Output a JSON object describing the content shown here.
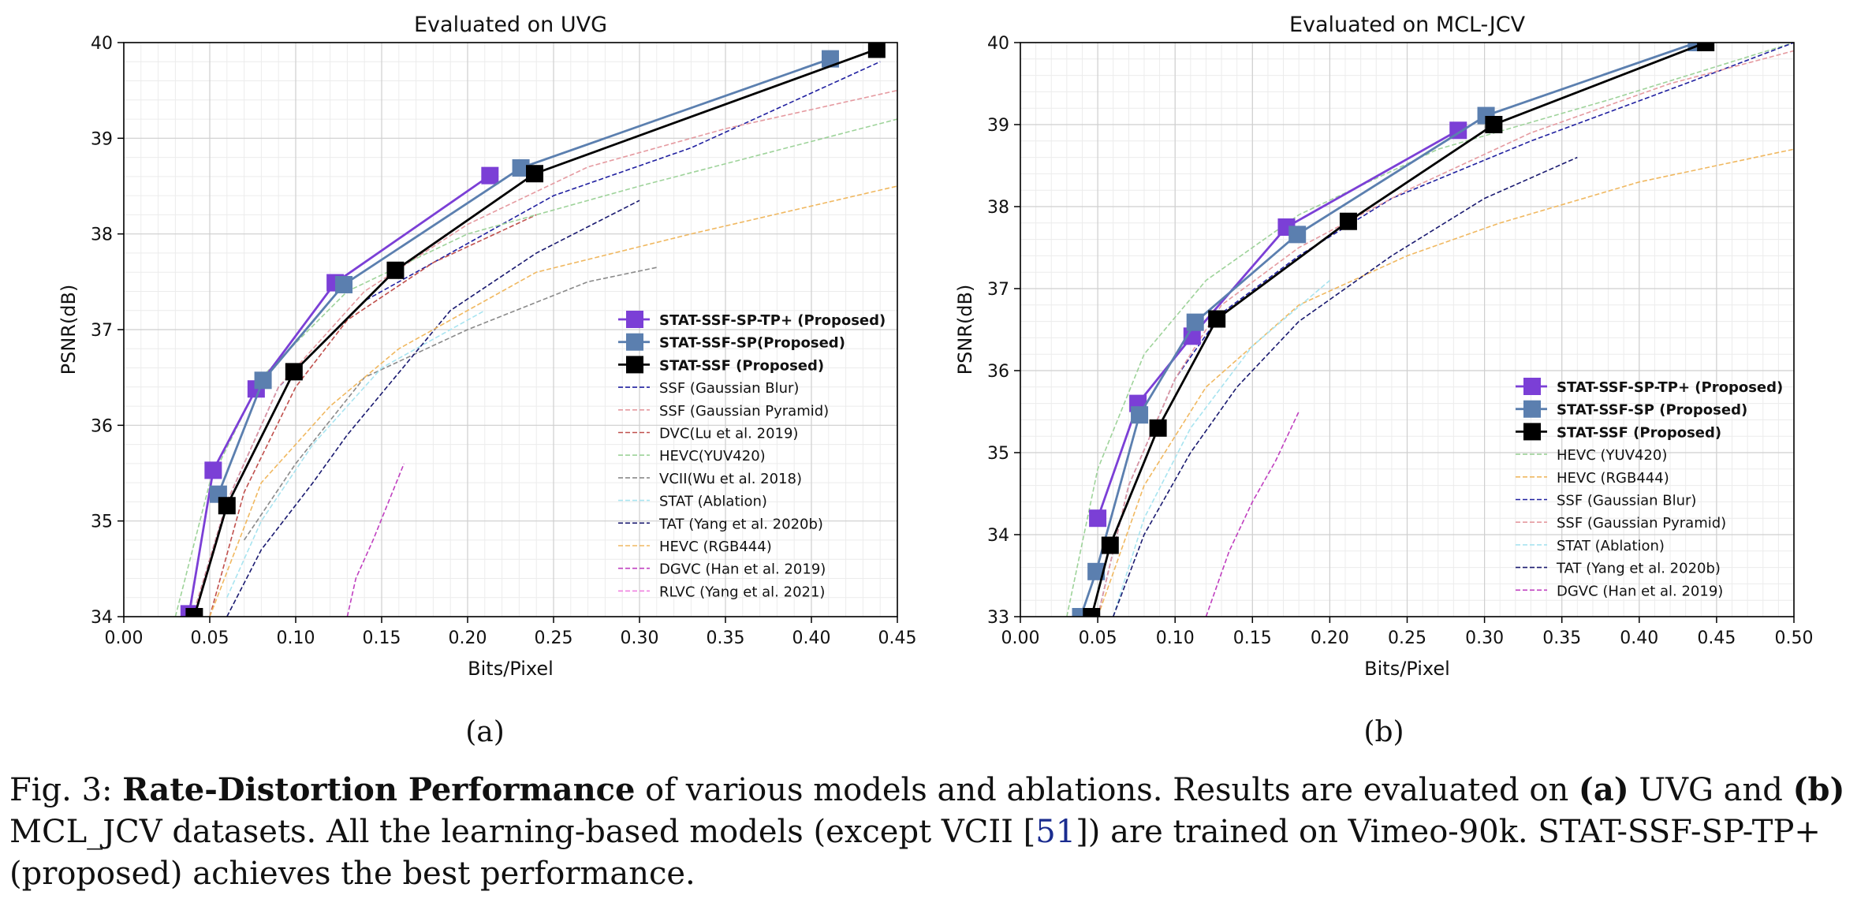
{
  "caption": {
    "prefix": "Fig. 3: ",
    "bold_title": "Rate-Distortion Performance",
    "text1": " of various models and ablations. Results are evaluated on ",
    "bold_a": "(a)",
    "text2": " UVG and ",
    "bold_b": "(b)",
    "text3": " MCL_JCV datasets. All the learning-based models (except VCII [",
    "ref": "51",
    "text4": "]) are trained on Vimeo-90k. STAT-SSF-SP-TP+ (proposed) achieves the best performance."
  },
  "chart_data": [
    {
      "type": "line",
      "panel_label": "(a)",
      "title": "Evaluated on UVG",
      "xlabel": "Bits/Pixel",
      "ylabel": "PSNR(dB)",
      "xlim": [
        0,
        0.45
      ],
      "ylim": [
        34,
        40
      ],
      "xticks": [
        "0.00",
        "0.05",
        "0.10",
        "0.15",
        "0.20",
        "0.25",
        "0.30",
        "0.35",
        "0.40",
        "0.45"
      ],
      "yticks": [
        "34",
        "35",
        "36",
        "37",
        "38",
        "39",
        "40"
      ],
      "grid": true,
      "legend_placement": "lower-right",
      "series": [
        {
          "name": "STAT-SSF-SP-TP+ (Proposed)",
          "color": "#7b3fd6",
          "style": "solid-marker",
          "bold": true,
          "x": [
            0.038,
            0.052,
            0.077,
            0.123,
            0.213
          ],
          "y": [
            34.03,
            35.53,
            36.38,
            37.49,
            38.61
          ]
        },
        {
          "name": "STAT-SSF-SP(Proposed)",
          "color": "#5b7faf",
          "style": "solid-marker",
          "bold": true,
          "x": [
            0.055,
            0.081,
            0.128,
            0.231,
            0.411
          ],
          "y": [
            35.28,
            36.47,
            37.47,
            38.69,
            39.83
          ]
        },
        {
          "name": "STAT-SSF (Proposed)",
          "color": "#000000",
          "style": "solid-marker",
          "bold": true,
          "x": [
            0.041,
            0.06,
            0.099,
            0.158,
            0.239,
            0.438
          ],
          "y": [
            34.0,
            35.16,
            36.56,
            37.62,
            38.63,
            39.93
          ]
        },
        {
          "name": "SSF (Gaussian Blur)",
          "color": "#2020a0",
          "style": "dashed",
          "x": [
            0.04,
            0.06,
            0.09,
            0.14,
            0.2,
            0.25,
            0.33,
            0.44
          ],
          "y": [
            34.0,
            35.2,
            36.4,
            37.3,
            37.9,
            38.4,
            38.9,
            39.8
          ]
        },
        {
          "name": "SSF (Gaussian Pyramid)",
          "color": "#e59aa0",
          "style": "dashed",
          "x": [
            0.04,
            0.06,
            0.09,
            0.14,
            0.2,
            0.27,
            0.35,
            0.45
          ],
          "y": [
            34.0,
            35.2,
            36.4,
            37.4,
            38.1,
            38.7,
            39.1,
            39.5
          ]
        },
        {
          "name": "DVC(Lu et al. 2019)",
          "color": "#c0504d",
          "style": "dashed",
          "x": [
            0.05,
            0.07,
            0.1,
            0.13,
            0.18,
            0.24
          ],
          "y": [
            34.0,
            35.3,
            36.4,
            37.1,
            37.7,
            38.2
          ]
        },
        {
          "name": "HEVC(YUV420)",
          "color": "#9ed39a",
          "style": "dashed",
          "x": [
            0.03,
            0.05,
            0.08,
            0.13,
            0.2,
            0.3,
            0.45
          ],
          "y": [
            34.0,
            35.4,
            36.5,
            37.4,
            38.0,
            38.5,
            39.2
          ]
        },
        {
          "name": "VCII(Wu et al. 2018)",
          "color": "#8a8a8a",
          "style": "dashed",
          "x": [
            0.07,
            0.1,
            0.14,
            0.2,
            0.27,
            0.31
          ],
          "y": [
            34.8,
            35.6,
            36.5,
            37.0,
            37.5,
            37.65
          ]
        },
        {
          "name": "STAT (Ablation)",
          "color": "#a8e4f0",
          "style": "dashed",
          "x": [
            0.06,
            0.08,
            0.11,
            0.15,
            0.21
          ],
          "y": [
            34.2,
            35.0,
            35.8,
            36.6,
            37.2
          ]
        },
        {
          "name": "TAT (Yang et al. 2020b)",
          "color": "#1a1a70",
          "style": "dashed",
          "x": [
            0.06,
            0.08,
            0.11,
            0.13,
            0.19,
            0.24,
            0.3
          ],
          "y": [
            34.0,
            34.7,
            35.4,
            35.9,
            37.2,
            37.8,
            38.35
          ]
        },
        {
          "name": "HEVC (RGB444)",
          "color": "#f0b860",
          "style": "dashed",
          "x": [
            0.05,
            0.08,
            0.12,
            0.16,
            0.24,
            0.33,
            0.45
          ],
          "y": [
            34.0,
            35.4,
            36.2,
            36.8,
            37.6,
            38.0,
            38.5
          ]
        },
        {
          "name": "DGVC (Han et al. 2019)",
          "color": "#c040c0",
          "style": "dashed",
          "x": [
            0.13,
            0.135,
            0.145,
            0.163
          ],
          "y": [
            34.0,
            34.4,
            34.8,
            35.6
          ]
        },
        {
          "name": "RLVC (Yang et al. 2021)",
          "color": "#f080e0",
          "style": "dashed",
          "x": [],
          "y": []
        }
      ]
    },
    {
      "type": "line",
      "panel_label": "(b)",
      "title": "Evaluated on MCL-JCV",
      "xlabel": "Bits/Pixel",
      "ylabel": "PSNR(dB)",
      "xlim": [
        0,
        0.5
      ],
      "ylim": [
        33,
        40
      ],
      "xticks": [
        "0.00",
        "0.05",
        "0.10",
        "0.15",
        "0.20",
        "0.25",
        "0.30",
        "0.35",
        "0.40",
        "0.45",
        "0.50"
      ],
      "yticks": [
        "33",
        "34",
        "35",
        "36",
        "37",
        "38",
        "39",
        "40"
      ],
      "grid": true,
      "legend_placement": "lower-right",
      "series": [
        {
          "name": "STAT-SSF-SP-TP+ (Proposed)",
          "color": "#7b3fd6",
          "style": "solid-marker",
          "bold": true,
          "x": [
            0.05,
            0.076,
            0.111,
            0.172,
            0.283
          ],
          "y": [
            34.2,
            35.6,
            36.42,
            37.75,
            38.93
          ]
        },
        {
          "name": "STAT-SSF-SP (Proposed)",
          "color": "#5b7faf",
          "style": "solid-marker",
          "bold": true,
          "x": [
            0.039,
            0.049,
            0.077,
            0.113,
            0.179,
            0.301,
            0.437
          ],
          "y": [
            33.0,
            33.55,
            35.46,
            36.59,
            37.66,
            39.11,
            40.0
          ]
        },
        {
          "name": "STAT-SSF (Proposed)",
          "color": "#000000",
          "style": "solid-marker",
          "bold": true,
          "x": [
            0.046,
            0.058,
            0.089,
            0.127,
            0.212,
            0.306,
            0.443
          ],
          "y": [
            33.0,
            33.87,
            35.3,
            36.63,
            37.82,
            39.0,
            40.0
          ]
        },
        {
          "name": "HEVC (YUV420)",
          "color": "#9ed39a",
          "style": "dashed",
          "x": [
            0.03,
            0.05,
            0.08,
            0.12,
            0.18,
            0.27,
            0.38,
            0.5
          ],
          "y": [
            33.0,
            34.8,
            36.2,
            37.1,
            37.9,
            38.7,
            39.3,
            40.0
          ]
        },
        {
          "name": "HEVC (RGB444)",
          "color": "#f0b860",
          "style": "dashed",
          "x": [
            0.05,
            0.08,
            0.12,
            0.18,
            0.25,
            0.31,
            0.4,
            0.5
          ],
          "y": [
            33.0,
            34.6,
            35.8,
            36.8,
            37.4,
            37.8,
            38.3,
            38.7
          ]
        },
        {
          "name": "SSF (Gaussian Blur)",
          "color": "#2020a0",
          "style": "dashed",
          "x": [
            0.05,
            0.07,
            0.1,
            0.13,
            0.18,
            0.24,
            0.33,
            0.43,
            0.5
          ],
          "y": [
            33.0,
            34.6,
            35.9,
            36.7,
            37.4,
            38.1,
            38.8,
            39.5,
            40.0
          ]
        },
        {
          "name": "SSF (Gaussian Pyramid)",
          "color": "#e59aa0",
          "style": "dashed",
          "x": [
            0.05,
            0.07,
            0.1,
            0.13,
            0.18,
            0.25,
            0.33,
            0.42,
            0.5
          ],
          "y": [
            33.0,
            34.6,
            35.9,
            36.8,
            37.5,
            38.2,
            38.9,
            39.5,
            39.9
          ]
        },
        {
          "name": "STAT (Ablation)",
          "color": "#a8e4f0",
          "style": "dashed",
          "x": [
            0.06,
            0.08,
            0.11,
            0.15,
            0.2
          ],
          "y": [
            33.0,
            34.2,
            35.3,
            36.3,
            37.1
          ]
        },
        {
          "name": "TAT (Yang et al. 2020b)",
          "color": "#1a1a70",
          "style": "dashed",
          "x": [
            0.06,
            0.08,
            0.11,
            0.14,
            0.18,
            0.24,
            0.3,
            0.36
          ],
          "y": [
            33.0,
            34.0,
            35.0,
            35.8,
            36.6,
            37.4,
            38.1,
            38.6
          ]
        },
        {
          "name": "DGVC (Han et al. 2019)",
          "color": "#c040c0",
          "style": "dashed",
          "x": [
            0.12,
            0.135,
            0.15,
            0.165,
            0.18
          ],
          "y": [
            33.0,
            33.8,
            34.4,
            34.9,
            35.5
          ]
        }
      ]
    }
  ]
}
